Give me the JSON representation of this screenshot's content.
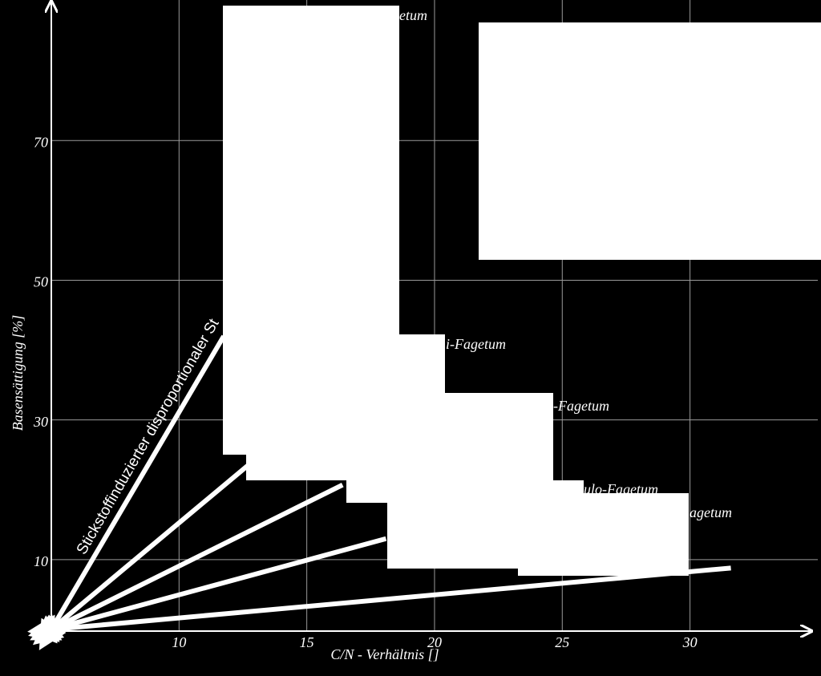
{
  "chart_data": {
    "type": "line",
    "xlabel": "C/N - Verhältnis []",
    "ylabel": "Basensättigung [%]",
    "xlim": [
      5,
      34.5
    ],
    "ylim": [
      0,
      90
    ],
    "xticks": [
      10,
      15,
      20,
      25,
      30
    ],
    "yticks": [
      10,
      30,
      50,
      70
    ],
    "grid": true,
    "series": [
      {
        "color": "#ffffff",
        "x": [
          5,
          11.75
        ],
        "values": [
          0,
          42
        ]
      },
      {
        "color": "#ffffff",
        "x": [
          5,
          12.7
        ],
        "values": [
          0,
          23.5
        ]
      },
      {
        "color": "#ffffff",
        "x": [
          5,
          16.4
        ],
        "values": [
          0,
          20.7
        ]
      },
      {
        "color": "#ffffff",
        "x": [
          5,
          18.1
        ],
        "values": [
          0,
          13
        ]
      },
      {
        "color": "#ffffff",
        "x": [
          5,
          31.6
        ],
        "values": [
          0,
          8.8
        ]
      }
    ],
    "annotations": [
      "Stickstoffinduzierter disproportionaler St",
      "etum",
      "i-Fagetum",
      "-Fagetum",
      "ulo-Fagetum",
      "agetum"
    ]
  }
}
